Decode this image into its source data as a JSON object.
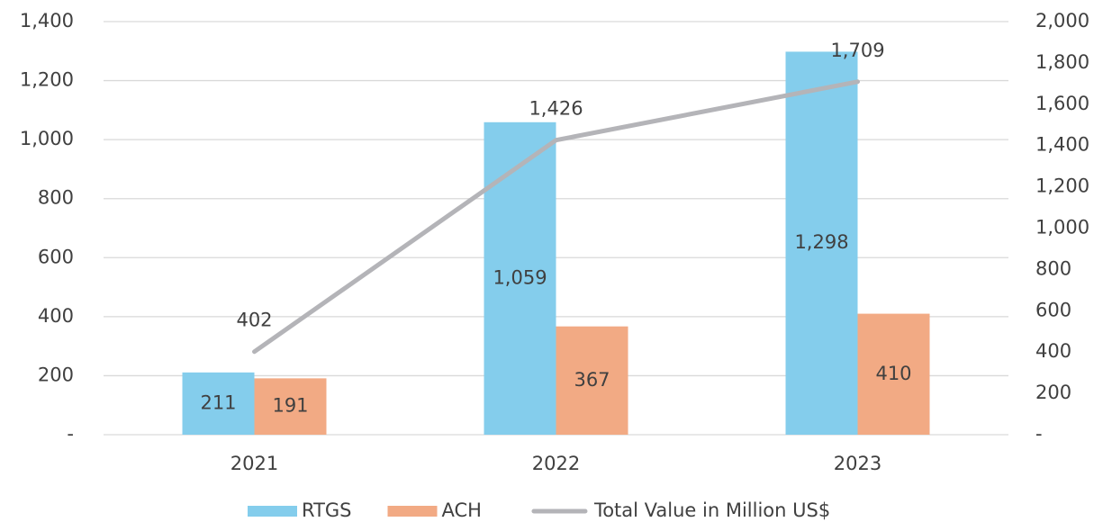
{
  "chart_data": {
    "type": "bar",
    "categories": [
      "2021",
      "2022",
      "2023"
    ],
    "series": [
      {
        "name": "RTGS",
        "color": "#84cdec",
        "values": [
          211,
          1059,
          1298
        ],
        "value_labels": [
          "211",
          "1,059",
          "1,298"
        ]
      },
      {
        "name": "ACH",
        "color": "#f2aa84",
        "values": [
          191,
          367,
          410
        ]
      },
      {
        "name": "Total Value in Million US$",
        "type": "line",
        "axis": "y2",
        "color": "#b4b4b8",
        "values": [
          402,
          1426,
          1709
        ],
        "value_labels": [
          "402",
          "1,426",
          "1,709"
        ]
      }
    ],
    "ylim": [
      0,
      1400
    ],
    "yticks": [
      {
        "value": 0,
        "label": "-"
      },
      200,
      400,
      600,
      800,
      {
        "value": 1000,
        "label": "1,000"
      },
      {
        "value": 1200,
        "label": "1,200"
      },
      {
        "value": 1400,
        "label": "1,400"
      }
    ],
    "y2lim": [
      0,
      2000
    ],
    "y2ticks": [
      {
        "value": 0,
        "label": "-"
      },
      200,
      400,
      600,
      800,
      {
        "value": 1000,
        "label": "1,000"
      },
      {
        "value": 1200,
        "label": "1,200"
      },
      {
        "value": 1400,
        "label": "1,400"
      },
      {
        "value": 1600,
        "label": "1,600"
      },
      {
        "value": 1800,
        "label": "1,800"
      },
      {
        "value": 2000,
        "label": "2,000"
      }
    ],
    "grid": true,
    "legend": "bottom"
  }
}
